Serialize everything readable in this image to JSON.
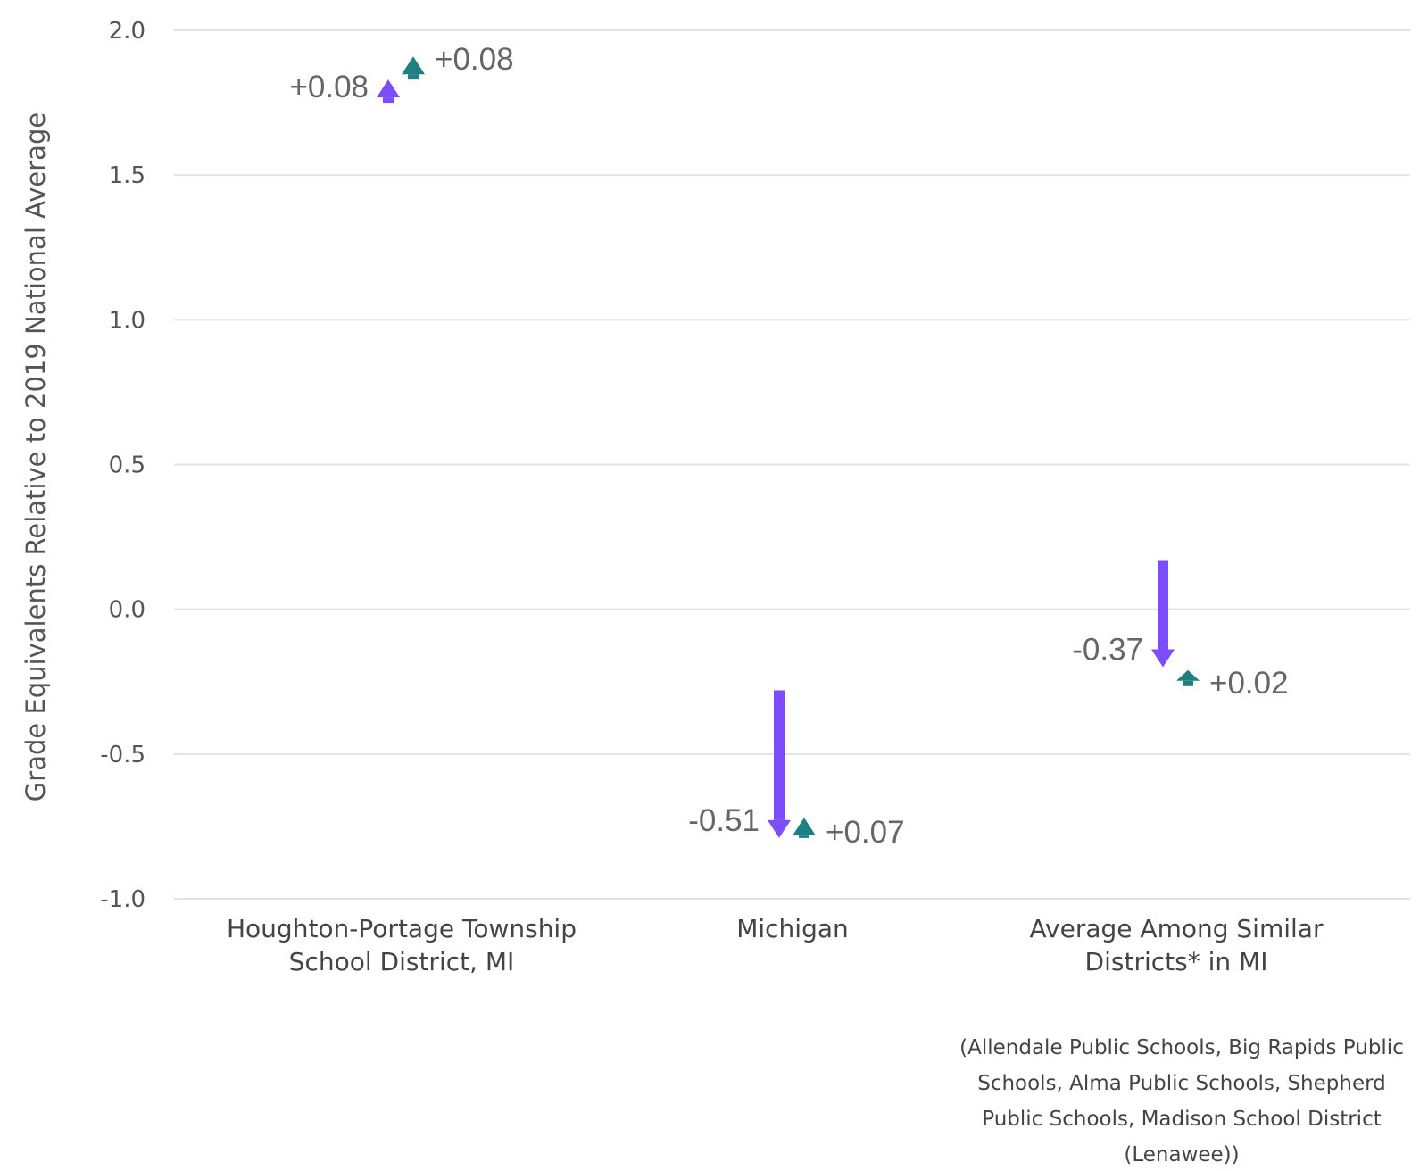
{
  "chart_data": {
    "type": "arrow",
    "ylabel": "Grade Equivalents Relative to 2019 National Average",
    "ylim": [
      -1.0,
      2.0
    ],
    "yticks": [
      {
        "value": 2.0,
        "label": "2.0"
      },
      {
        "value": 1.5,
        "label": "1.5"
      },
      {
        "value": 1.0,
        "label": "1.0"
      },
      {
        "value": 0.5,
        "label": "0.5"
      },
      {
        "value": 0.0,
        "label": "0.0"
      },
      {
        "value": -0.5,
        "label": "-0.5"
      },
      {
        "value": -1.0,
        "label": "-1.0"
      }
    ],
    "grid": true,
    "colors": {
      "series1": "#7b4dff",
      "series2": "#1e8080"
    },
    "categories": [
      {
        "label_lines": [
          "Houghton-Portage Township",
          "School District, MI"
        ],
        "note_lines": [],
        "series1": {
          "from": 1.75,
          "to": 1.83,
          "label": "+0.08"
        },
        "series2": {
          "from": 1.83,
          "to": 1.91,
          "label": "+0.08"
        }
      },
      {
        "label_lines": [
          "Michigan"
        ],
        "note_lines": [],
        "series1": {
          "from": -0.28,
          "to": -0.79,
          "label": "-0.51"
        },
        "series2": {
          "from": -0.79,
          "to": -0.72,
          "label": "+0.07"
        }
      },
      {
        "label_lines": [
          "Average Among Similar",
          "Districts* in MI"
        ],
        "note_lines": [
          "(Allendale Public Schools, Big Rapids Public",
          "Schools, Alma Public Schools, Shepherd",
          "Public Schools, Madison School District",
          "(Lenawee))"
        ],
        "series1": {
          "from": 0.17,
          "to": -0.2,
          "label": "-0.37"
        },
        "series2": {
          "from": -0.23,
          "to": -0.21,
          "label": "+0.02"
        }
      }
    ]
  }
}
